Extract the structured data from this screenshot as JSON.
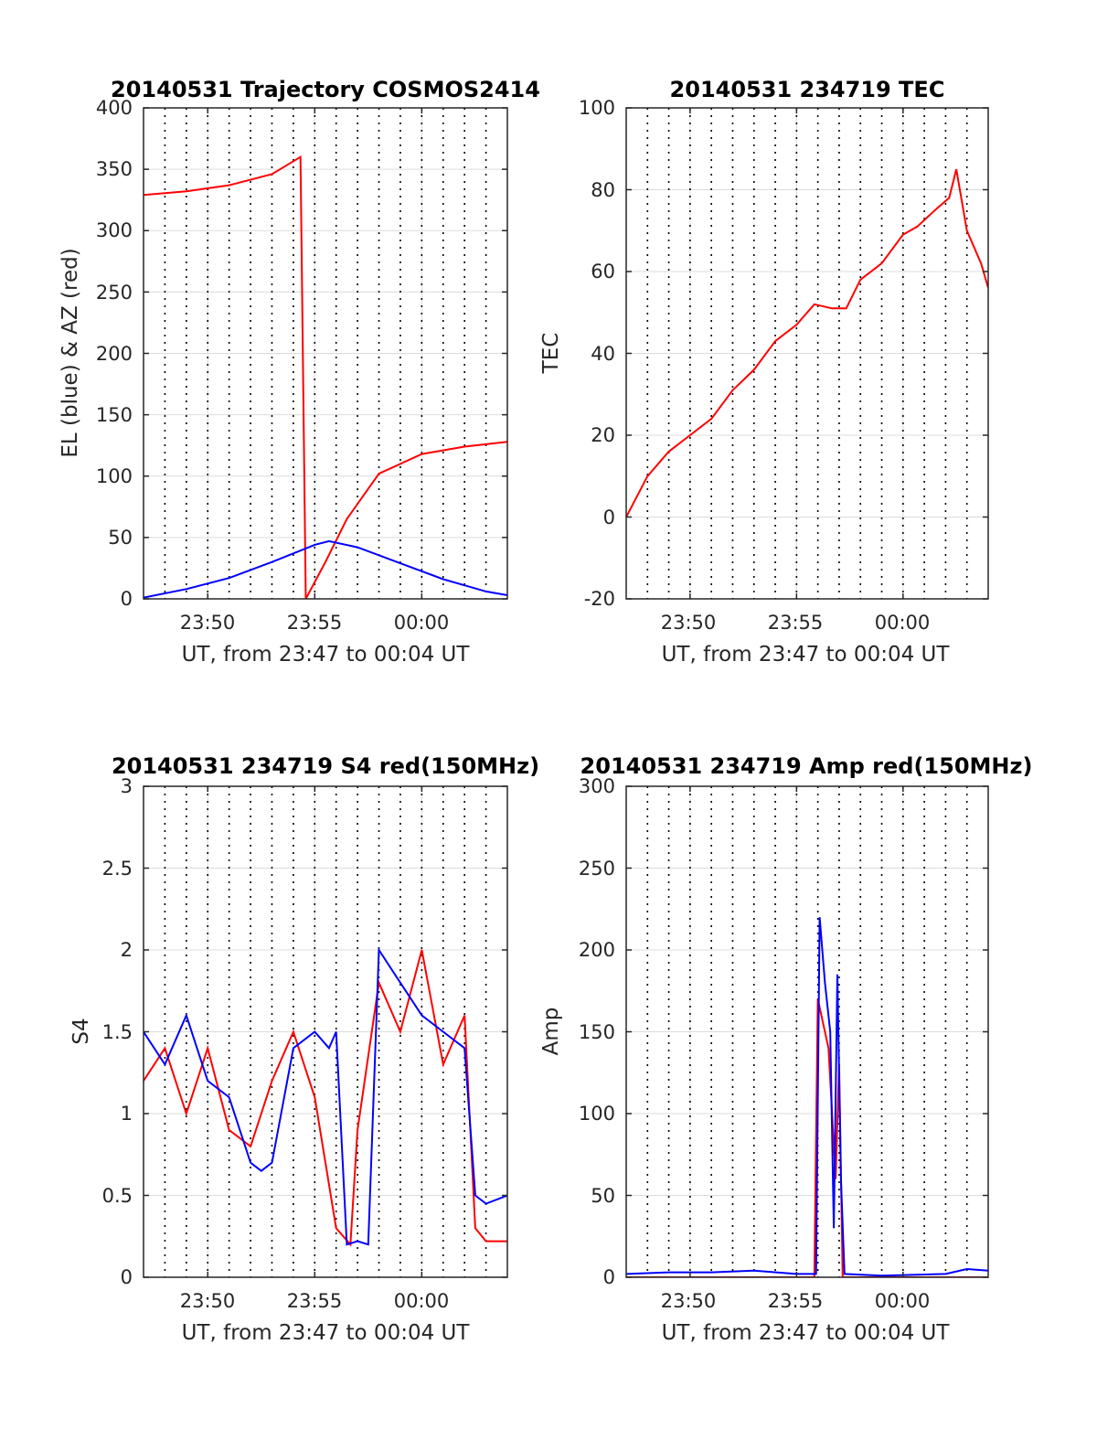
{
  "colors": {
    "azimuth": "#ff0000",
    "elevation": "#0000ff",
    "red_series": "#ff0000",
    "blue_series": "#0000ff",
    "grid": "#dcdcdc",
    "axes": "#262626"
  },
  "chart_data": [
    {
      "type": "line",
      "title": "20140531 Trajectory COSMOS2414",
      "xlabel": "UT, from 23:47 to 00:04 UT",
      "ylabel": "EL (blue) & AZ (red)",
      "xlim": [
        "23:47",
        "00:04"
      ],
      "xticks": [
        "23:50",
        "23:55",
        "00:00"
      ],
      "ylim": [
        0,
        400
      ],
      "yticks": [
        "0",
        "50",
        "100",
        "150",
        "200",
        "250",
        "300",
        "350",
        "400"
      ],
      "grid": true,
      "series": [
        {
          "color": "#ff0000",
          "x": [
            "23:47",
            "23:49",
            "23:51",
            "23:53",
            "23:54:20",
            "23:54:35",
            "23:55:30",
            "23:56:30",
            "23:58",
            "00:00",
            "00:02",
            "00:04"
          ],
          "y": [
            329,
            332,
            337,
            346,
            360,
            0,
            30,
            65,
            102,
            118,
            124,
            128
          ]
        },
        {
          "color": "#0000ff",
          "x": [
            "23:47",
            "23:49",
            "23:51",
            "23:53",
            "23:55",
            "23:55:40",
            "23:57",
            "23:59",
            "00:01",
            "00:03",
            "00:04"
          ],
          "y": [
            1,
            8,
            17,
            30,
            44,
            47,
            42,
            29,
            16,
            6,
            3
          ]
        }
      ]
    },
    {
      "type": "line",
      "title": "20140531 234719 TEC",
      "xlabel": "UT, from 23:47 to 00:04 UT",
      "ylabel": "TEC",
      "xlim": [
        "23:47",
        "00:04"
      ],
      "xticks": [
        "23:50",
        "23:55",
        "00:00"
      ],
      "ylim": [
        -20,
        100
      ],
      "yticks": [
        "-20",
        "0",
        "20",
        "40",
        "60",
        "80",
        "100"
      ],
      "grid": true,
      "series": [
        {
          "color": "#ff0000",
          "x": [
            "23:47",
            "23:48",
            "23:49",
            "23:50",
            "23:51",
            "23:52",
            "23:53",
            "23:54",
            "23:55",
            "23:55:50",
            "23:56:40",
            "23:57:20",
            "23:58",
            "23:59",
            "00:00",
            "00:00:40",
            "00:01:30",
            "00:02:10",
            "00:02:30",
            "00:03",
            "00:03:40",
            "00:04"
          ],
          "y": [
            0,
            10,
            16,
            20,
            24,
            31,
            36,
            43,
            47,
            52,
            51,
            51,
            58,
            62,
            69,
            71,
            75,
            78,
            85,
            70,
            62,
            56
          ]
        }
      ]
    },
    {
      "type": "line",
      "title": "20140531 234719 S4 red(150MHz)",
      "xlabel": "UT, from 23:47 to 00:04 UT",
      "ylabel": "S4",
      "xlim": [
        "23:47",
        "00:04"
      ],
      "xticks": [
        "23:50",
        "23:55",
        "00:00"
      ],
      "ylim": [
        0,
        3
      ],
      "yticks": [
        "0",
        "0.5",
        "1",
        "1.5",
        "2",
        "2.5",
        "3"
      ],
      "grid": true,
      "series": [
        {
          "color": "#ff0000",
          "x": [
            "23:47",
            "23:48",
            "23:49",
            "23:50",
            "23:51",
            "23:52",
            "23:53",
            "23:54",
            "23:55",
            "23:56",
            "23:56:40",
            "23:57",
            "23:58",
            "23:59",
            "00:00",
            "00:01",
            "00:02",
            "00:02:30",
            "00:03",
            "00:04"
          ],
          "y": [
            1.2,
            1.4,
            1.0,
            1.4,
            0.9,
            0.8,
            1.2,
            1.5,
            1.1,
            0.3,
            0.2,
            0.9,
            1.8,
            1.5,
            2.0,
            1.3,
            1.6,
            0.3,
            0.22,
            0.22
          ]
        },
        {
          "color": "#0000ff",
          "x": [
            "23:47",
            "23:48",
            "23:49",
            "23:50",
            "23:51",
            "23:52",
            "23:52:30",
            "23:53",
            "23:54",
            "23:55",
            "23:55:40",
            "23:56",
            "23:56:30",
            "23:57",
            "23:57:30",
            "23:58",
            "23:59",
            "00:00",
            "00:01",
            "00:02",
            "00:02:30",
            "00:03",
            "00:04"
          ],
          "y": [
            1.5,
            1.3,
            1.6,
            1.2,
            1.1,
            0.7,
            0.65,
            0.7,
            1.4,
            1.5,
            1.4,
            1.5,
            0.2,
            0.22,
            0.2,
            2.0,
            1.8,
            1.6,
            1.5,
            1.4,
            0.5,
            0.45,
            0.5
          ]
        }
      ]
    },
    {
      "type": "line",
      "title": "20140531 234719 Amp red(150MHz)",
      "xlabel": "UT, from 23:47 to 00:04 UT",
      "ylabel": "Amp",
      "xlim": [
        "23:47",
        "00:04"
      ],
      "xticks": [
        "23:50",
        "23:55",
        "00:00"
      ],
      "ylim": [
        0,
        300
      ],
      "yticks": [
        "0",
        "50",
        "100",
        "150",
        "200",
        "250",
        "300"
      ],
      "grid": true,
      "series": [
        {
          "color": "#ff0000",
          "x": [
            "23:47",
            "23:55:50",
            "23:56",
            "23:56:10",
            "23:56:30",
            "23:56:50",
            "23:57:00",
            "23:57:10",
            "00:04"
          ],
          "y": [
            0,
            0,
            170,
            160,
            140,
            60,
            130,
            0,
            0
          ]
        },
        {
          "color": "#0000ff",
          "x": [
            "23:47",
            "23:49",
            "23:51",
            "23:53",
            "23:55",
            "23:55:55",
            "23:56:05",
            "23:56:20",
            "23:56:35",
            "23:56:45",
            "23:56:55",
            "23:57:05",
            "23:57:15",
            "23:59",
            "00:02",
            "00:03",
            "00:04"
          ],
          "y": [
            2,
            3,
            3,
            4,
            2,
            2,
            220,
            180,
            150,
            30,
            185,
            60,
            2,
            1,
            2,
            5,
            4
          ]
        }
      ]
    }
  ]
}
